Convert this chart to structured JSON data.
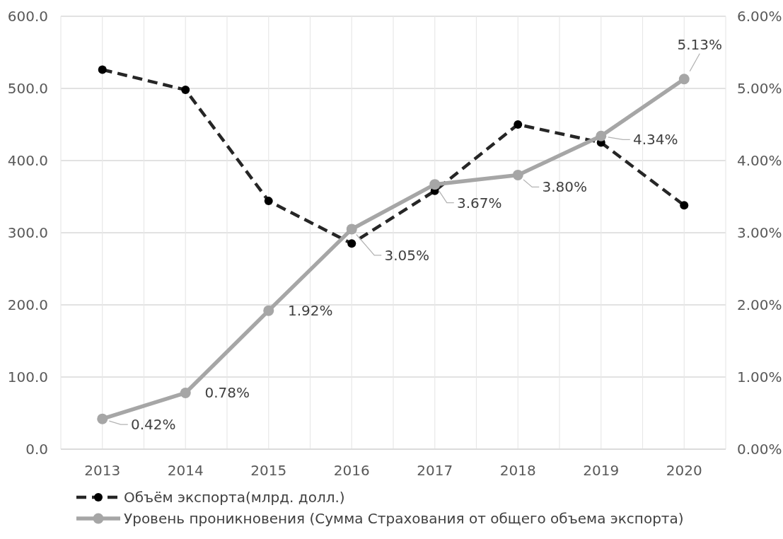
{
  "chart_data": {
    "type": "line",
    "categories": [
      "2013",
      "2014",
      "2015",
      "2016",
      "2017",
      "2018",
      "2019",
      "2020"
    ],
    "series": [
      {
        "name": "Объём экспорта(млрд. долл.)",
        "color": "#262626",
        "values": [
          526,
          498,
          344,
          285,
          358,
          450,
          425,
          338
        ],
        "line_style": "dashed"
      },
      {
        "name": "Уровень проникновения (Сумма Страхования от общего объема экспорта)",
        "color": "#a6a6a6",
        "axis": "y2",
        "values": [
          0.42,
          0.78,
          1.92,
          3.05,
          3.67,
          3.8,
          4.34,
          5.13
        ],
        "value_labels": [
          "0.42%",
          "0.78%",
          "1.92%",
          "3.05%",
          "3.67%",
          "3.80%",
          "4.34%",
          "5.13%"
        ],
        "line_style": "solid"
      }
    ],
    "ylim": [
      0,
      600
    ],
    "yticks": [
      {
        "value": 0,
        "label": "0.0"
      },
      {
        "value": 100,
        "label": "100.0"
      },
      {
        "value": 200,
        "label": "200.0"
      },
      {
        "value": 300,
        "label": "300.0"
      },
      {
        "value": 400,
        "label": "400.0"
      },
      {
        "value": 500,
        "label": "500.0"
      },
      {
        "value": 600,
        "label": "600.0"
      }
    ],
    "y2lim": [
      0,
      6
    ],
    "y2ticks": [
      {
        "value": 0,
        "label": "0.00%"
      },
      {
        "value": 1,
        "label": "1.00%"
      },
      {
        "value": 2,
        "label": "2.00%"
      },
      {
        "value": 3,
        "label": "3.00%"
      },
      {
        "value": 4,
        "label": "4.00%"
      },
      {
        "value": 5,
        "label": "5.00%"
      },
      {
        "value": 6,
        "label": "6.00%"
      }
    ],
    "grid": true,
    "legend": "bottom",
    "marker": "circle"
  }
}
